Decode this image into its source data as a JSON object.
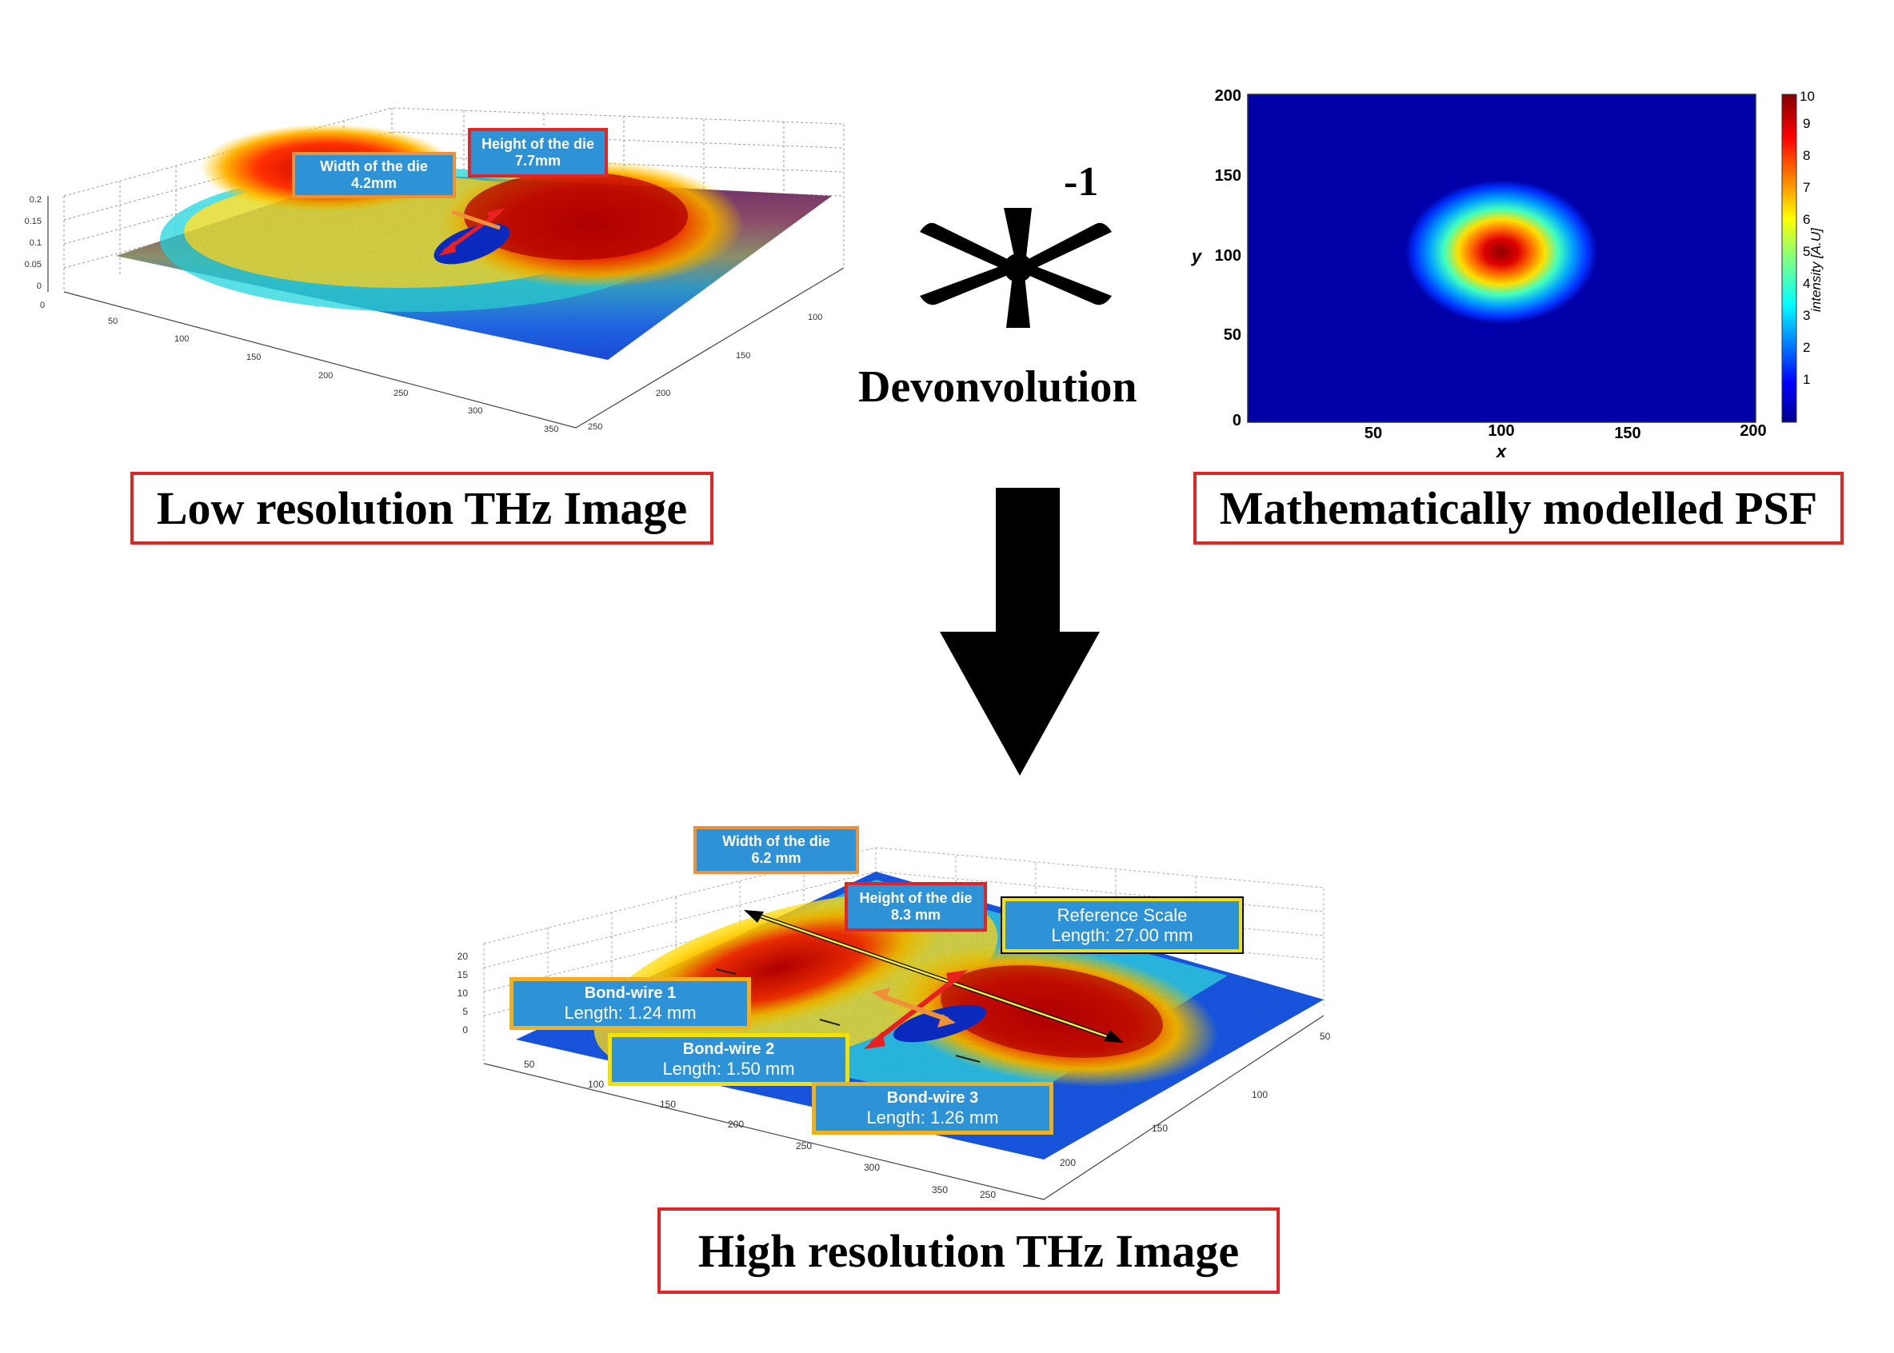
{
  "low_res": {
    "caption": "Low resolution THz Image",
    "z_ticks": [
      "0.2",
      "0.15",
      "0.1",
      "0.05",
      "0"
    ],
    "x_ticks": [
      "0",
      "50",
      "100",
      "150",
      "200",
      "250",
      "300",
      "350"
    ],
    "y_ticks": [
      "100",
      "150",
      "200",
      "250"
    ],
    "width_tag": {
      "title": "Width of the die",
      "value": "4.2mm"
    },
    "height_tag": {
      "title": "Height of the die",
      "value": "7.7mm"
    }
  },
  "operator": {
    "exponent": "-1",
    "label": "Devonvolution"
  },
  "psf": {
    "caption": "Mathematically modelled PSF",
    "chart_data": {
      "type": "heatmap",
      "xlabel": "x",
      "ylabel": "y",
      "xlim": [
        0,
        200
      ],
      "ylim": [
        0,
        200
      ],
      "x_ticks": [
        "50",
        "100",
        "150",
        "200"
      ],
      "y_ticks": [
        "0",
        "50",
        "100",
        "150",
        "200"
      ],
      "colorbar_label": "intensity [A.U]",
      "colorbar_ticks": [
        "1",
        "2",
        "3",
        "4",
        "5",
        "6",
        "7",
        "8",
        "9",
        "10"
      ],
      "peak": {
        "x": 100,
        "y": 100,
        "value": 10
      },
      "colorscale": "jet"
    }
  },
  "high_res": {
    "caption": "High resolution THz Image",
    "z_ticks": [
      "20",
      "15",
      "10",
      "5",
      "0"
    ],
    "x_ticks": [
      "50",
      "100",
      "150",
      "200",
      "250",
      "300",
      "350"
    ],
    "y_ticks": [
      "50",
      "100",
      "150",
      "200",
      "250"
    ],
    "width_tag": {
      "title": "Width of the die",
      "value": "6.2 mm"
    },
    "height_tag": {
      "title": "Height of the die",
      "value": "8.3 mm"
    },
    "ref_tag": {
      "title": "Reference Scale",
      "value": "Length: 27.00 mm"
    },
    "bond1": {
      "title": "Bond-wire 1",
      "value": "Length: 1.24 mm"
    },
    "bond2": {
      "title": "Bond-wire 2",
      "value": "Length: 1.50 mm"
    },
    "bond3": {
      "title": "Bond-wire 3",
      "value": "Length: 1.26 mm"
    }
  },
  "colors": {
    "caption_border": "#e22424",
    "tag_fill": "#2e92d6",
    "tag_orange": "#f0913a",
    "tag_yellow": "#f5e000",
    "arrow": "#000000"
  }
}
